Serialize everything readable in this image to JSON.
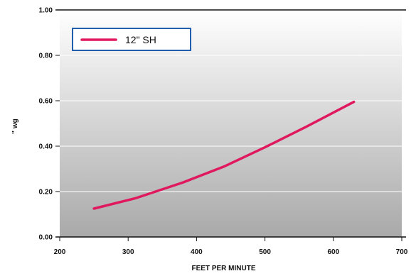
{
  "chart_data": {
    "type": "line",
    "title": "",
    "xlabel": "FEET PER MINUTE",
    "ylabel": "\" wg",
    "xlim": [
      200,
      700
    ],
    "ylim": [
      0,
      1
    ],
    "xticks": [
      200,
      300,
      400,
      500,
      600,
      700
    ],
    "yticks": [
      0,
      0.2,
      0.4,
      0.6,
      0.8,
      1.0
    ],
    "xtick_labels": [
      "200",
      "300",
      "400",
      "500",
      "600",
      "700"
    ],
    "ytick_labels": [
      "0.00",
      "0.20",
      "0.40",
      "0.60",
      "0.80",
      "1.00"
    ],
    "grid": true,
    "legend_position": "top-left",
    "background": "gradient-light-to-dark-gray",
    "series": [
      {
        "name": "12\" SH",
        "color": "#E0185E",
        "x": [
          250,
          310,
          380,
          440,
          500,
          560,
          630
        ],
        "y": [
          0.125,
          0.17,
          0.24,
          0.31,
          0.395,
          0.485,
          0.595
        ]
      }
    ]
  }
}
